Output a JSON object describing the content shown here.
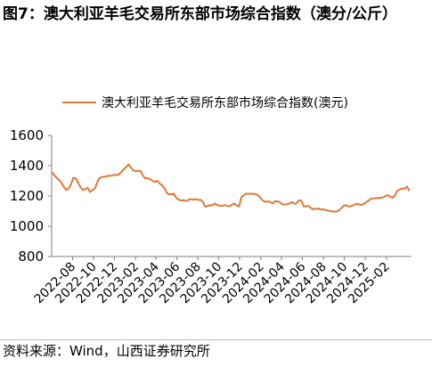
{
  "figure": {
    "title": "图7：澳大利亚羊毛交易所东部市场综合指数（澳分/公斤）",
    "source": "资料来源：Wind，山西证券研究所"
  },
  "colors": {
    "line": "#e0793a",
    "axis": "#7f7f7f"
  },
  "chart_data": {
    "type": "line",
    "title": "",
    "xlabel": "",
    "ylabel": "",
    "ylim": [
      800,
      1600
    ],
    "yticks": [
      800,
      1000,
      1200,
      1400,
      1600
    ],
    "grid": false,
    "legend_position": "top",
    "x_range": [
      "2022-06-01",
      "2025-04-15"
    ],
    "x_tick_labels": [
      "2022-08",
      "2022-10",
      "2022-12",
      "2023-02",
      "2023-04",
      "2023-06",
      "2023-08",
      "2023-10",
      "2023-12",
      "2024-02",
      "2024-04",
      "2024-06",
      "2024-08",
      "2024-10",
      "2024-12",
      "2025-02"
    ],
    "series": [
      {
        "name": "澳大利亚羊毛交易所东部市场综合指数(澳元)",
        "x": [
          "2022-06-01",
          "2022-06-15",
          "2022-06-29",
          "2022-07-06",
          "2022-07-13",
          "2022-07-20",
          "2022-07-27",
          "2022-08-03",
          "2022-08-10",
          "2022-08-17",
          "2022-08-24",
          "2022-08-31",
          "2022-09-07",
          "2022-09-14",
          "2022-09-21",
          "2022-09-28",
          "2022-10-05",
          "2022-10-12",
          "2022-10-19",
          "2022-10-26",
          "2022-11-02",
          "2022-11-09",
          "2022-11-16",
          "2022-11-23",
          "2022-11-30",
          "2022-12-07",
          "2022-12-14",
          "2023-01-11",
          "2023-01-18",
          "2023-01-25",
          "2023-02-01",
          "2023-02-08",
          "2023-02-15",
          "2023-02-22",
          "2023-03-01",
          "2023-03-08",
          "2023-03-15",
          "2023-03-22",
          "2023-03-29",
          "2023-04-05",
          "2023-04-12",
          "2023-04-19",
          "2023-04-26",
          "2023-05-03",
          "2023-05-10",
          "2023-05-17",
          "2023-05-24",
          "2023-05-31",
          "2023-06-07",
          "2023-06-14",
          "2023-06-21",
          "2023-06-28",
          "2023-07-12",
          "2023-07-19",
          "2023-07-26",
          "2023-08-02",
          "2023-08-09",
          "2023-08-16",
          "2023-08-23",
          "2023-08-30",
          "2023-09-06",
          "2023-09-13",
          "2023-09-20",
          "2023-09-27",
          "2023-10-04",
          "2023-10-11",
          "2023-10-18",
          "2023-10-25",
          "2023-11-01",
          "2023-11-08",
          "2023-11-15",
          "2023-11-22",
          "2023-11-29",
          "2023-12-06",
          "2023-12-13",
          "2023-12-20",
          "2024-01-10",
          "2024-01-17",
          "2024-01-24",
          "2024-01-31",
          "2024-02-07",
          "2024-02-14",
          "2024-02-21",
          "2024-02-28",
          "2024-03-06",
          "2024-03-13",
          "2024-03-20",
          "2024-03-27",
          "2024-04-03",
          "2024-04-10",
          "2024-04-17",
          "2024-04-24",
          "2024-05-01",
          "2024-05-08",
          "2024-05-15",
          "2024-05-22",
          "2024-05-29",
          "2024-06-05",
          "2024-06-12",
          "2024-06-19",
          "2024-06-26",
          "2024-07-03",
          "2024-07-10",
          "2024-07-17",
          "2024-07-24",
          "2024-07-31",
          "2024-08-07",
          "2024-08-14",
          "2024-08-21",
          "2024-08-28",
          "2024-09-04",
          "2024-09-11",
          "2024-09-18",
          "2024-09-25",
          "2024-10-02",
          "2024-10-09",
          "2024-10-16",
          "2024-10-23",
          "2024-10-30",
          "2024-11-06",
          "2024-11-13",
          "2024-11-20",
          "2024-11-27",
          "2024-12-04",
          "2024-12-11",
          "2024-12-18",
          "2025-01-15",
          "2025-01-22",
          "2025-01-29",
          "2025-02-05",
          "2025-02-12",
          "2025-02-19",
          "2025-02-26",
          "2025-03-05",
          "2025-03-12",
          "2025-03-19",
          "2025-03-26",
          "2025-04-02",
          "2025-04-09"
        ],
        "values": [
          1356,
          1322,
          1290,
          1262,
          1240,
          1248,
          1275,
          1320,
          1316,
          1288,
          1258,
          1240,
          1245,
          1255,
          1226,
          1240,
          1250,
          1292,
          1318,
          1325,
          1328,
          1330,
          1335,
          1332,
          1340,
          1338,
          1342,
          1408,
          1388,
          1370,
          1362,
          1366,
          1365,
          1335,
          1315,
          1318,
          1310,
          1300,
          1292,
          1300,
          1282,
          1270,
          1250,
          1220,
          1210,
          1212,
          1215,
          1185,
          1175,
          1170,
          1172,
          1168,
          1180,
          1175,
          1178,
          1174,
          1175,
          1160,
          1128,
          1135,
          1140,
          1138,
          1150,
          1140,
          1135,
          1135,
          1140,
          1134,
          1132,
          1140,
          1150,
          1138,
          1130,
          1190,
          1205,
          1215,
          1215,
          1212,
          1205,
          1185,
          1170,
          1160,
          1165,
          1160,
          1150,
          1165,
          1165,
          1160,
          1145,
          1143,
          1146,
          1150,
          1160,
          1148,
          1152,
          1172,
          1168,
          1130,
          1132,
          1135,
          1120,
          1112,
          1115,
          1118,
          1110,
          1112,
          1108,
          1104,
          1100,
          1098,
          1095,
          1100,
          1110,
          1125,
          1140,
          1135,
          1130,
          1135,
          1142,
          1148,
          1145,
          1140,
          1148,
          1160,
          1170,
          1182,
          1188,
          1190,
          1200,
          1205,
          1195,
          1188,
          1205,
          1235,
          1242,
          1250,
          1248,
          1262,
          1232
        ]
      }
    ]
  }
}
